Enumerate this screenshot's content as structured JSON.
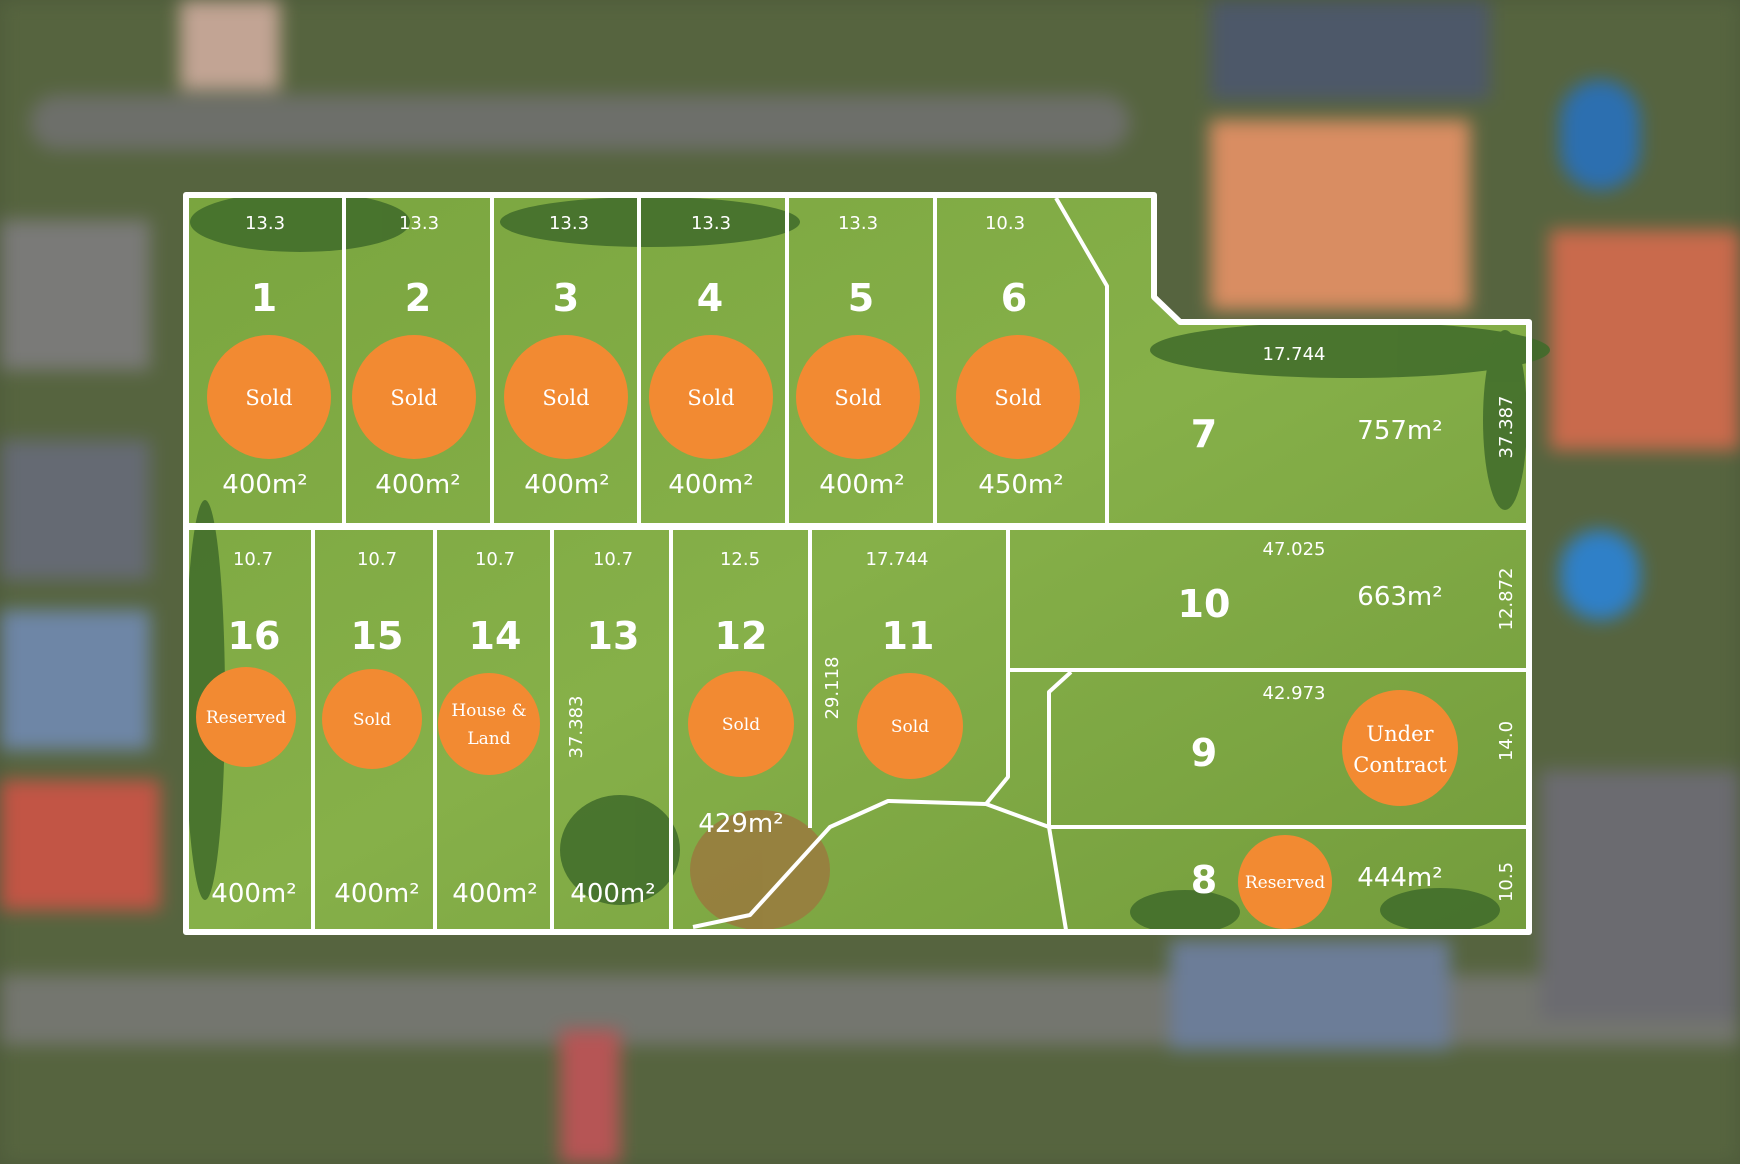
{
  "colors": {
    "status_badge": "#f28a32",
    "boundary": "#ffffff",
    "grass": "#7fa844"
  },
  "lots": [
    {
      "number": "1",
      "status": "Sold",
      "area": "400m²",
      "frontage": "13.3"
    },
    {
      "number": "2",
      "status": "Sold",
      "area": "400m²",
      "frontage": "13.3"
    },
    {
      "number": "3",
      "status": "Sold",
      "area": "400m²",
      "frontage": "13.3"
    },
    {
      "number": "4",
      "status": "Sold",
      "area": "400m²",
      "frontage": "13.3"
    },
    {
      "number": "5",
      "status": "Sold",
      "area": "400m²",
      "frontage": "13.3"
    },
    {
      "number": "6",
      "status": "Sold",
      "area": "450m²",
      "frontage": "10.3"
    },
    {
      "number": "7",
      "status": "",
      "area": "757m²",
      "frontage": "17.744",
      "depth": "37.387"
    },
    {
      "number": "8",
      "status": "Reserved",
      "area": "444m²",
      "depth": "10.5"
    },
    {
      "number": "9",
      "status_line1": "Under",
      "status_line2": "Contract",
      "frontage": "42.973",
      "depth": "14.0"
    },
    {
      "number": "10",
      "status": "",
      "area": "663m²",
      "frontage": "47.025",
      "depth": "12.872"
    },
    {
      "number": "11",
      "status": "Sold",
      "frontage": "17.744",
      "depth": "29.118"
    },
    {
      "number": "12",
      "status": "Sold",
      "area": "429m²",
      "frontage": "12.5"
    },
    {
      "number": "13",
      "status": "",
      "area": "400m²",
      "frontage": "10.7",
      "depth": "37.383"
    },
    {
      "number": "14",
      "status_line1": "House &",
      "status_line2": "Land",
      "area": "400m²",
      "frontage": "10.7"
    },
    {
      "number": "15",
      "status": "Sold",
      "area": "400m²",
      "frontage": "10.7"
    },
    {
      "number": "16",
      "status": "Reserved",
      "area": "400m²",
      "frontage": "10.7"
    }
  ]
}
